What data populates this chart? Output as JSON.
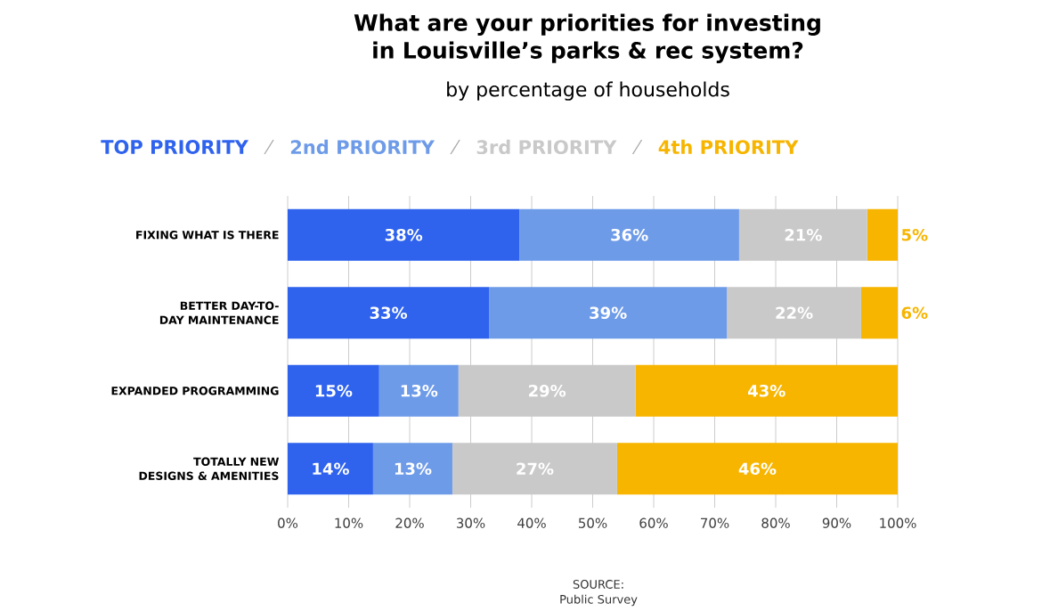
{
  "chart_data": {
    "type": "bar",
    "orientation": "horizontal",
    "stacked": true,
    "title": "What are your priorities for investing in Louisville’s parks & rec system?",
    "subtitle": "by percentage of households",
    "categories": [
      "FIXING WHAT IS THERE",
      "BETTER DAY-TO-DAY MAINTENANCE",
      "EXPANDED PROGRAMMING",
      "TOTALLY NEW DESIGNS & AMENITIES"
    ],
    "series": [
      {
        "name": "TOP PRIORITY",
        "color": "#2f63ee",
        "values": [
          38,
          33,
          15,
          14
        ],
        "value_labels": [
          "38%",
          "33%",
          "15%",
          "14%"
        ]
      },
      {
        "name": "2nd PRIORITY",
        "color": "#6e9be8",
        "values": [
          36,
          39,
          13,
          13
        ],
        "value_labels": [
          "36%",
          "39%",
          "13%",
          "13%"
        ]
      },
      {
        "name": "3rd PRIORITY",
        "color": "#c9c9c9",
        "values": [
          21,
          22,
          29,
          27
        ],
        "value_labels": [
          "21%",
          "22%",
          "29%",
          "27%"
        ]
      },
      {
        "name": "4th PRIORITY",
        "color": "#f7b500",
        "values": [
          5,
          6,
          43,
          46
        ],
        "value_labels": [
          "5%",
          "6%",
          "43%",
          "46%"
        ]
      }
    ],
    "xlim": [
      0,
      100
    ],
    "xticks": [
      {
        "value": 0,
        "label": "0%"
      },
      {
        "value": 10,
        "label": "10%"
      },
      {
        "value": 20,
        "label": "20%"
      },
      {
        "value": 30,
        "label": "30%"
      },
      {
        "value": 40,
        "label": "40%"
      },
      {
        "value": 50,
        "label": "50%"
      },
      {
        "value": 60,
        "label": "60%"
      },
      {
        "value": 70,
        "label": "70%"
      },
      {
        "value": 80,
        "label": "80%"
      },
      {
        "value": 90,
        "label": "90%"
      },
      {
        "value": 100,
        "label": "100%"
      }
    ],
    "grid": "x",
    "legend": "top",
    "annotations": [
      "SOURCE:",
      "Public Survey"
    ]
  }
}
